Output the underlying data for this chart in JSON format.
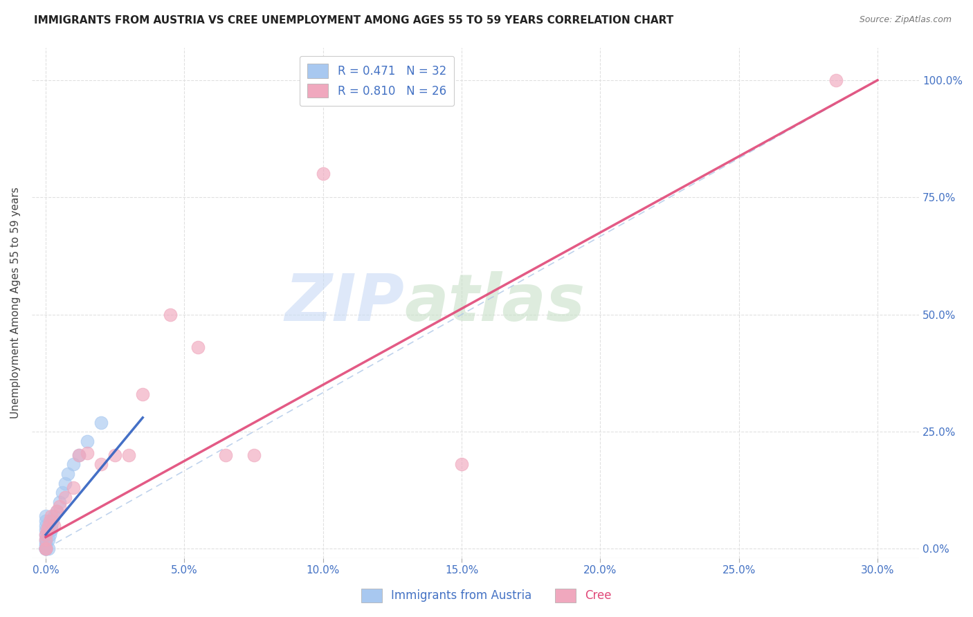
{
  "title": "IMMIGRANTS FROM AUSTRIA VS CREE UNEMPLOYMENT AMONG AGES 55 TO 59 YEARS CORRELATION CHART",
  "source": "Source: ZipAtlas.com",
  "ylabel": "Unemployment Among Ages 55 to 59 years",
  "xlabel_ticks": [
    "0.0%",
    "5.0%",
    "10.0%",
    "15.0%",
    "20.0%",
    "25.0%",
    "30.0%"
  ],
  "xlabel_vals": [
    0.0,
    5.0,
    10.0,
    15.0,
    20.0,
    25.0,
    30.0
  ],
  "yaxis_right_ticks": [
    "0.0%",
    "25.0%",
    "50.0%",
    "75.0%",
    "100.0%"
  ],
  "yaxis_right_vals": [
    0.0,
    25.0,
    50.0,
    75.0,
    100.0
  ],
  "xlim": [
    -0.5,
    31.5
  ],
  "ylim": [
    -2,
    107
  ],
  "legend_austria": "R = 0.471   N = 32",
  "legend_cree": "R = 0.810   N = 26",
  "legend_label_austria": "Immigrants from Austria",
  "legend_label_cree": "Cree",
  "austria_color": "#a8c8f0",
  "cree_color": "#f0a8be",
  "trendline_austria_color": "#3060c0",
  "trendline_cree_color": "#e04878",
  "diagonal_color": "#b0c8e8",
  "background_color": "#ffffff",
  "grid_color": "#e0e0e0",
  "austria_x": [
    0.0,
    0.0,
    0.0,
    0.0,
    0.0,
    0.0,
    0.0,
    0.0,
    0.0,
    0.0,
    0.0,
    0.0,
    0.0,
    0.0,
    0.0,
    0.0,
    0.1,
    0.1,
    0.15,
    0.2,
    0.2,
    0.25,
    0.3,
    0.4,
    0.5,
    0.6,
    0.7,
    0.8,
    1.0,
    1.2,
    1.5,
    2.0
  ],
  "austria_y": [
    0.0,
    0.0,
    0.0,
    0.0,
    0.0,
    0.0,
    0.0,
    0.5,
    1.0,
    1.5,
    2.0,
    3.0,
    4.0,
    5.0,
    6.0,
    7.0,
    0.0,
    2.0,
    3.0,
    4.0,
    5.0,
    6.0,
    7.0,
    8.0,
    10.0,
    12.0,
    14.0,
    16.0,
    18.0,
    20.0,
    23.0,
    27.0
  ],
  "cree_x": [
    0.0,
    0.0,
    0.0,
    0.0,
    0.05,
    0.1,
    0.15,
    0.2,
    0.3,
    0.4,
    0.5,
    0.7,
    1.0,
    1.2,
    1.5,
    2.0,
    2.5,
    3.0,
    3.5,
    4.5,
    5.5,
    6.5,
    7.5,
    10.0,
    15.0,
    28.5
  ],
  "cree_y": [
    0.0,
    0.0,
    2.0,
    3.0,
    4.0,
    5.0,
    6.0,
    7.0,
    5.0,
    8.0,
    9.0,
    11.0,
    13.0,
    20.0,
    20.5,
    18.0,
    20.0,
    20.0,
    33.0,
    50.0,
    43.0,
    20.0,
    20.0,
    80.0,
    18.0,
    100.0
  ],
  "austria_trendline_x0": 0.0,
  "austria_trendline_y0": 3.0,
  "austria_trendline_x1": 3.5,
  "austria_trendline_y1": 28.0,
  "cree_trendline_x0": 0.0,
  "cree_trendline_y0": 2.5,
  "cree_trendline_x1": 30.0,
  "cree_trendline_y1": 100.0
}
